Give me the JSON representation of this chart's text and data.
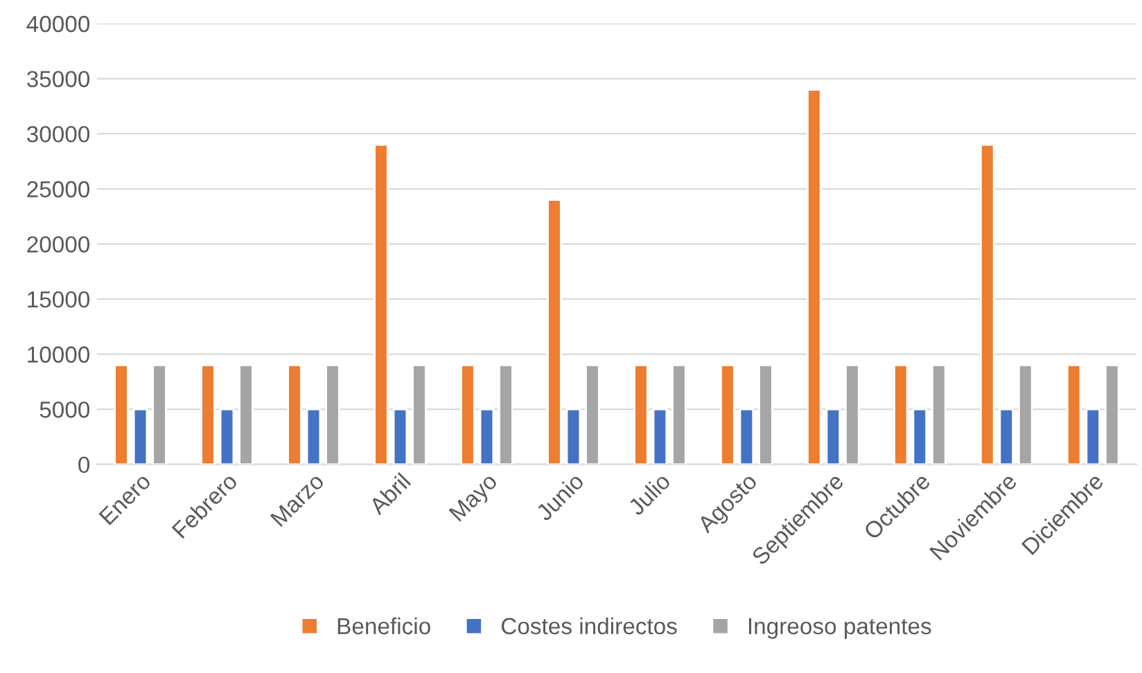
{
  "chart_data": {
    "type": "bar",
    "categories": [
      "Enero",
      "Febrero",
      "Marzo",
      "Abril",
      "Mayo",
      "Junio",
      "Julio",
      "Agosto",
      "Septiembre",
      "Octubre",
      "Noviembre",
      "Diciembre"
    ],
    "series": [
      {
        "name": "Beneficio",
        "color": "#ed7d31",
        "values": [
          9000,
          9000,
          9000,
          29000,
          9000,
          24000,
          9000,
          9000,
          34000,
          9000,
          29000,
          9000
        ]
      },
      {
        "name": "Costes indirectos",
        "color": "#4472c4",
        "values": [
          5000,
          5000,
          5000,
          5000,
          5000,
          5000,
          5000,
          5000,
          5000,
          5000,
          5000,
          5000
        ]
      },
      {
        "name": "Ingreoso patentes",
        "color": "#a5a5a5",
        "values": [
          9000,
          9000,
          9000,
          9000,
          9000,
          9000,
          9000,
          9000,
          9000,
          9000,
          9000,
          9000
        ]
      }
    ],
    "ylim": [
      0,
      40000
    ],
    "yticks": [
      0,
      5000,
      10000,
      15000,
      20000,
      25000,
      30000,
      35000,
      40000
    ],
    "grid": "y",
    "legend": "bottom"
  }
}
